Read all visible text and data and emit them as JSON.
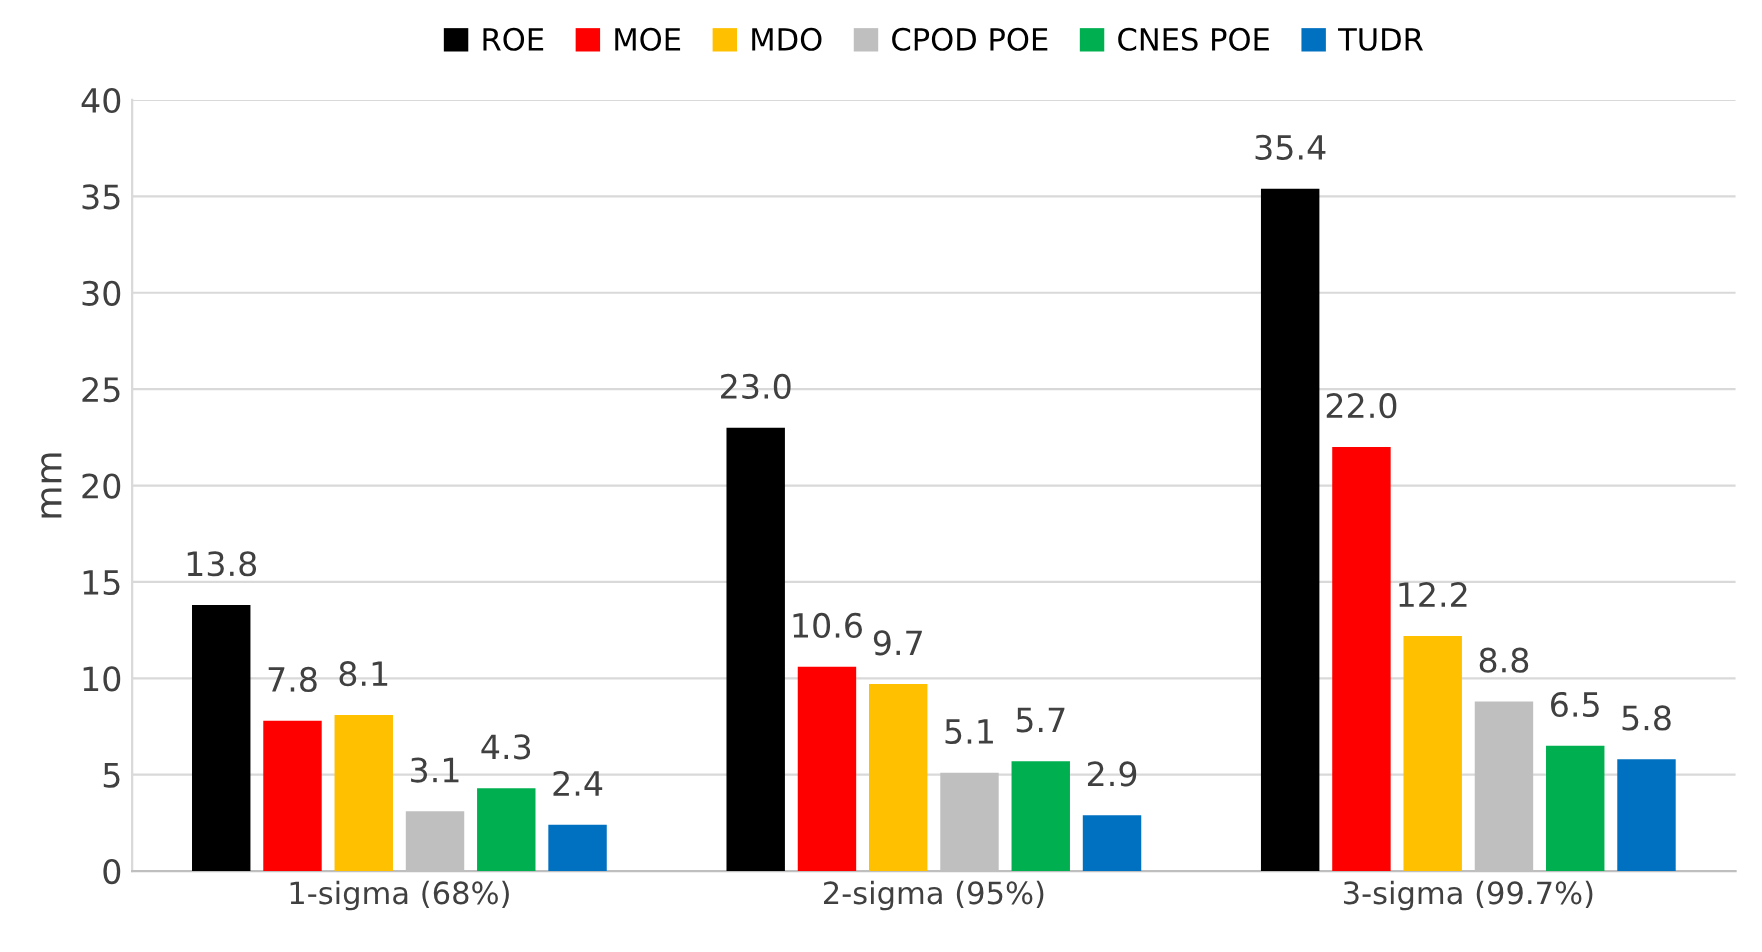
{
  "chart_data": {
    "type": "bar",
    "ylabel": "mm",
    "categories": [
      "1-sigma (68%)",
      "2-sigma (95%)",
      "3-sigma (99.7%)"
    ],
    "series": [
      {
        "name": "ROE",
        "color": "#000000",
        "values": [
          13.8,
          23,
          35.4
        ],
        "value_labels": [
          "13.8",
          "23.0",
          "35.4"
        ]
      },
      {
        "name": "MOE",
        "color": "#ff0000",
        "values": [
          7.8,
          10.6,
          22
        ],
        "value_labels": [
          "7.8",
          "10.6",
          "22.0"
        ]
      },
      {
        "name": "MDO",
        "color": "#ffc000",
        "values": [
          8.1,
          9.7,
          12.2
        ],
        "value_labels": [
          "8.1",
          "9.7",
          "12.2"
        ]
      },
      {
        "name": "CPOD POE",
        "color": "#bfbfbf",
        "values": [
          3.1,
          5.1,
          8.8
        ],
        "value_labels": [
          "3.1",
          "5.1",
          "8.8"
        ]
      },
      {
        "name": "CNES POE",
        "color": "#00b050",
        "values": [
          4.3,
          5.7,
          6.5
        ],
        "value_labels": [
          "4.3",
          "5.7",
          "6.5"
        ]
      },
      {
        "name": "TUDR",
        "color": "#0070c0",
        "values": [
          2.4,
          2.9,
          5.8
        ],
        "value_labels": [
          "2.4",
          "2.9",
          "5.8"
        ]
      }
    ],
    "ylim": [
      0,
      40
    ],
    "yticks": [
      0,
      5,
      10,
      15,
      20,
      25,
      30,
      35,
      40
    ],
    "grid": "y",
    "legend": "top"
  }
}
